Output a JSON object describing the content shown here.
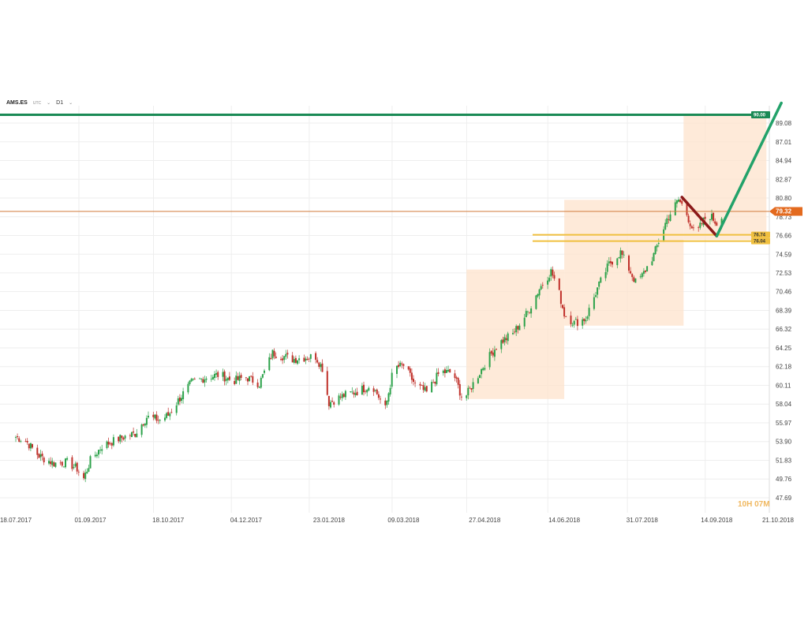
{
  "toolbar": {
    "symbol": "AMS.ES",
    "timezone": "UTC",
    "timeframe": "D1"
  },
  "countdown": "10H 07M",
  "colors": {
    "bull": "#2ca24a",
    "bear": "#c0302a",
    "target": "#1a8a55",
    "price_line": "#d07a3a",
    "price_badge": "#e36a1e",
    "support": "#f0c040",
    "zone": "#fde3cc",
    "down_arrow": "#8b1a1a",
    "up_arrow": "#22a26a"
  },
  "chart_data": {
    "type": "candlestick",
    "instrument": "AMS.ES",
    "timeframe": "D1",
    "x_ticks": [
      "18.07.2017",
      "01.09.2017",
      "18.10.2017",
      "04.12.2017",
      "23.01.2018",
      "09.03.2018",
      "27.04.2018",
      "14.06.2018",
      "31.07.2018",
      "14.09.2018",
      "21.10.2018"
    ],
    "y_ticks": [
      "89.08",
      "87.01",
      "84.94",
      "82.87",
      "80.80",
      "78.73",
      "76.66",
      "74.59",
      "72.53",
      "70.46",
      "68.39",
      "66.32",
      "64.25",
      "62.18",
      "60.11",
      "58.04",
      "55.97",
      "53.90",
      "51.83",
      "49.76",
      "47.69"
    ],
    "ylim": [
      47.69,
      91.15
    ],
    "current_price": {
      "value": 79.32,
      "label": "79.32"
    },
    "target_level": {
      "value": 90.0,
      "label": "90.00"
    },
    "support_levels": [
      {
        "value": 76.74,
        "label": "76.74"
      },
      {
        "value": 76.04,
        "label": "76.04"
      }
    ],
    "price_path": [
      [
        "18.07.2017",
        54.4
      ],
      [
        "24.07.2017",
        54.0
      ],
      [
        "01.08.2017",
        52.3
      ],
      [
        "10.08.2017",
        51.5
      ],
      [
        "18.08.2017",
        51.6
      ],
      [
        "24.08.2017",
        50.9
      ],
      [
        "28.08.2017",
        49.8
      ],
      [
        "01.09.2017",
        51.8
      ],
      [
        "08.09.2017",
        53.4
      ],
      [
        "18.09.2017",
        54.2
      ],
      [
        "28.09.2017",
        54.8
      ],
      [
        "05.10.2017",
        56.6
      ],
      [
        "13.10.2017",
        56.3
      ],
      [
        "18.10.2017",
        56.8
      ],
      [
        "25.10.2017",
        58.7
      ],
      [
        "01.11.2017",
        60.4
      ],
      [
        "10.11.2017",
        61.0
      ],
      [
        "18.11.2017",
        61.3
      ],
      [
        "26.11.2017",
        60.6
      ],
      [
        "04.12.2017",
        61.0
      ],
      [
        "12.12.2017",
        60.3
      ],
      [
        "20.12.2017",
        63.7
      ],
      [
        "01.01.2018",
        63.0
      ],
      [
        "09.01.2018",
        63.2
      ],
      [
        "15.01.2018",
        63.3
      ],
      [
        "19.01.2018",
        62.0
      ],
      [
        "23.01.2018",
        58.2
      ],
      [
        "01.02.2018",
        59.0
      ],
      [
        "10.02.2018",
        59.5
      ],
      [
        "18.02.2018",
        60.2
      ],
      [
        "26.02.2018",
        57.5
      ],
      [
        "03.03.2018",
        62.0
      ],
      [
        "09.03.2018",
        62.3
      ],
      [
        "16.03.2018",
        60.2
      ],
      [
        "23.03.2018",
        59.3
      ],
      [
        "31.03.2018",
        61.6
      ],
      [
        "08.04.2018",
        61.5
      ],
      [
        "14.04.2018",
        58.4
      ],
      [
        "21.04.2018",
        60.6
      ],
      [
        "27.04.2018",
        62.5
      ],
      [
        "05.05.2018",
        64.7
      ],
      [
        "14.05.2018",
        65.8
      ],
      [
        "23.05.2018",
        68.2
      ],
      [
        "30.05.2018",
        70.8
      ],
      [
        "06.06.2018",
        72.7
      ],
      [
        "10.06.2018",
        71.0
      ],
      [
        "14.06.2018",
        68.0
      ],
      [
        "20.06.2018",
        67.0
      ],
      [
        "27.06.2018",
        67.5
      ],
      [
        "04.07.2018",
        70.8
      ],
      [
        "11.07.2018",
        73.5
      ],
      [
        "18.07.2018",
        74.8
      ],
      [
        "23.07.2018",
        73.0
      ],
      [
        "27.07.2018",
        71.5
      ],
      [
        "31.07.2018",
        72.2
      ],
      [
        "07.08.2018",
        74.5
      ],
      [
        "15.08.2018",
        78.5
      ],
      [
        "22.08.2018",
        80.6
      ],
      [
        "26.08.2018",
        79.5
      ],
      [
        "01.09.2018",
        76.6
      ],
      [
        "05.09.2018",
        78.0
      ],
      [
        "09.09.2018",
        79.1
      ],
      [
        "14.09.2018",
        78.0
      ],
      [
        "18.09.2018",
        79.3
      ]
    ],
    "shaded_zones": [
      {
        "x_from": "16.04.2018",
        "x_to": "14.06.2018",
        "y_from": 58.6,
        "y_to": 72.9
      },
      {
        "x_from": "14.06.2018",
        "x_to": "25.08.2018",
        "y_from": 66.7,
        "y_to": 80.6
      },
      {
        "x_from": "25.08.2018",
        "x_to": "14.10.2018",
        "y_from": 76.2,
        "y_to": 90.0
      }
    ],
    "projection": [
      {
        "from": [
          "24.08.2018",
          80.9
        ],
        "to": [
          "14.09.2018",
          76.6
        ],
        "direction": "down"
      },
      {
        "from": [
          "14.09.2018",
          76.6
        ],
        "to": [
          "23.10.2018",
          91.3
        ],
        "direction": "up"
      }
    ]
  }
}
